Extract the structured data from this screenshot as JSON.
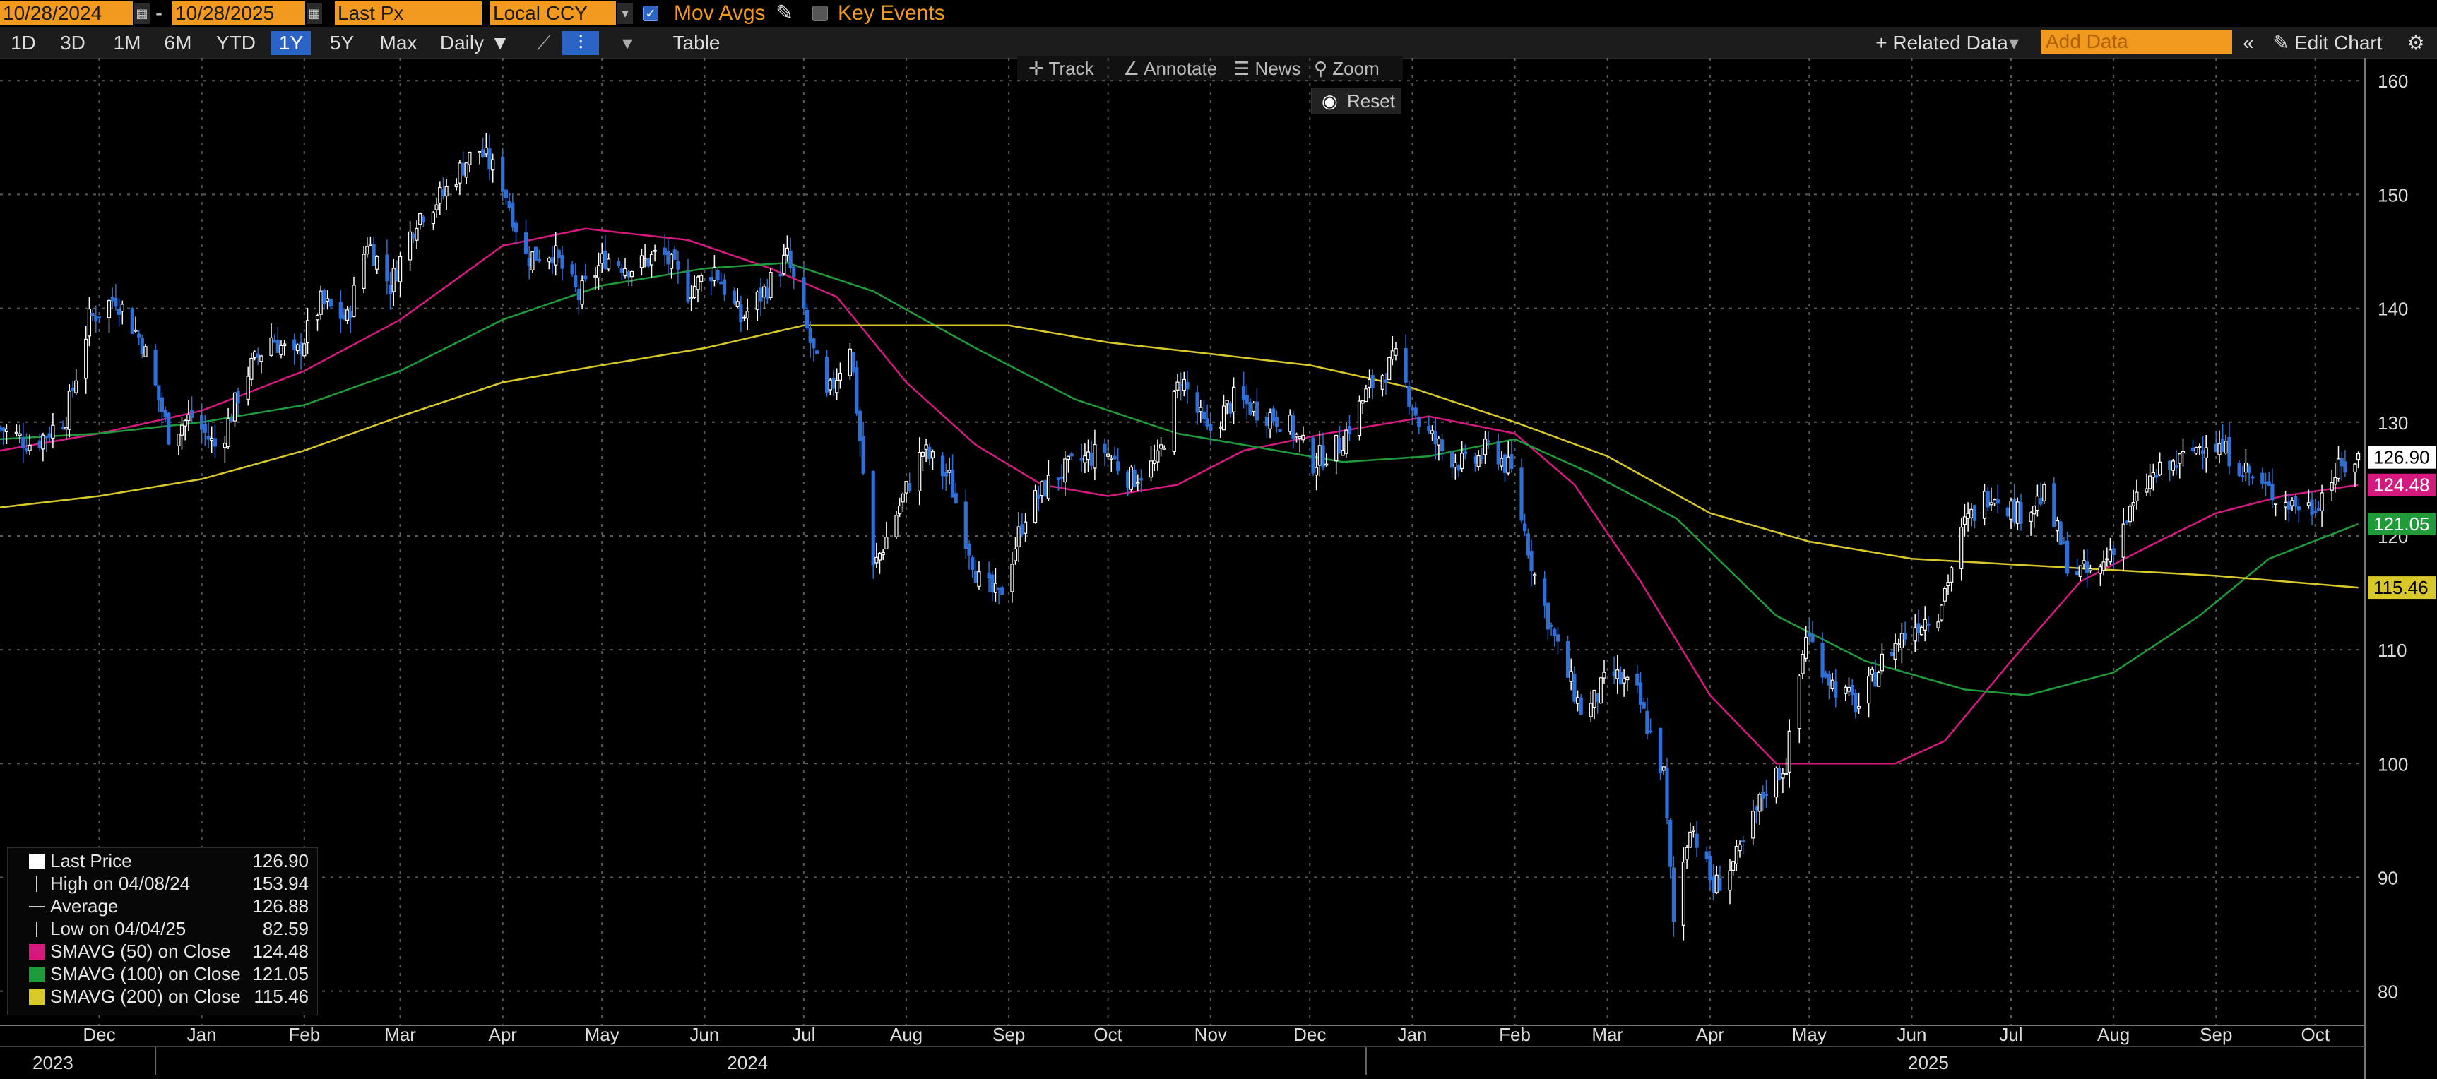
{
  "toolbar": {
    "start_date": "10/28/2024",
    "date_sep": "-",
    "end_date": "10/28/2025",
    "field": "Last Px",
    "currency": "Local CCY",
    "mov_avgs_label": "Mov Avgs",
    "mov_avgs_checked": true,
    "key_events_label": "Key Events",
    "key_events_checked": false,
    "ranges": [
      "1D",
      "3D",
      "1M",
      "6M",
      "YTD",
      "1Y",
      "5Y",
      "Max"
    ],
    "active_range": "1Y",
    "frequency": "Daily",
    "table_label": "Table",
    "related_data_label": "+ Related Data",
    "add_data_placeholder": "Add Data",
    "edit_chart_label": "Edit Chart"
  },
  "chart_menu": {
    "track": "Track",
    "annotate": "Annotate",
    "news": "News",
    "zoom": "Zoom",
    "reset": "Reset"
  },
  "legend": {
    "last_price_label": "Last Price",
    "last_price_value": "126.90",
    "high_label": "High on 04/08/24",
    "high_value": "153.94",
    "average_label": "Average",
    "average_value": "126.88",
    "low_label": "Low on 04/04/25",
    "low_value": "82.59",
    "sma50_label": "SMAVG (50)  on Close",
    "sma50_value": "124.48",
    "sma100_label": "SMAVG (100)  on Close",
    "sma100_value": "121.05",
    "sma200_label": "SMAVG (200)  on Close",
    "sma200_value": "115.46"
  },
  "colors": {
    "price": "#ffffff",
    "down": "#2f6fd6",
    "sma50": "#d6197f",
    "sma100": "#1f9b3a",
    "sma200": "#d8c82a",
    "grid": "#5a5a5a"
  },
  "chart_data": {
    "type": "line",
    "style": "candlestick",
    "x_axis": "date",
    "ylim": [
      77,
      162
    ],
    "y_ticks": [
      80,
      90,
      100,
      110,
      120,
      130,
      140,
      150,
      160
    ],
    "x_start": "2023-11-15",
    "x_end": "2025-10-30",
    "x_months": [
      {
        "label": "Dec",
        "date": "2023-12-15"
      },
      {
        "label": "Jan",
        "date": "2024-01-15"
      },
      {
        "label": "Feb",
        "date": "2024-02-15"
      },
      {
        "label": "Mar",
        "date": "2024-03-15"
      },
      {
        "label": "Apr",
        "date": "2024-04-15"
      },
      {
        "label": "May",
        "date": "2024-05-15"
      },
      {
        "label": "Jun",
        "date": "2024-06-15"
      },
      {
        "label": "Jul",
        "date": "2024-07-15"
      },
      {
        "label": "Aug",
        "date": "2024-08-15"
      },
      {
        "label": "Sep",
        "date": "2024-09-15"
      },
      {
        "label": "Oct",
        "date": "2024-10-15"
      },
      {
        "label": "Nov",
        "date": "2024-11-15"
      },
      {
        "label": "Dec",
        "date": "2024-12-15"
      },
      {
        "label": "Jan",
        "date": "2025-01-15"
      },
      {
        "label": "Feb",
        "date": "2025-02-15"
      },
      {
        "label": "Mar",
        "date": "2025-03-15"
      },
      {
        "label": "Apr",
        "date": "2025-04-15"
      },
      {
        "label": "May",
        "date": "2025-05-15"
      },
      {
        "label": "Jun",
        "date": "2025-06-15"
      },
      {
        "label": "Jul",
        "date": "2025-07-15"
      },
      {
        "label": "Aug",
        "date": "2025-08-15"
      },
      {
        "label": "Sep",
        "date": "2025-09-15"
      },
      {
        "label": "Oct",
        "date": "2025-10-15"
      }
    ],
    "x_years": [
      {
        "label": "2023",
        "date": "2023-12-01"
      },
      {
        "label": "2024",
        "date": "2024-06-28"
      },
      {
        "label": "2025",
        "date": "2025-06-20"
      }
    ],
    "x_year_breaks": [
      "2024-01-01",
      "2025-01-01"
    ],
    "price": {
      "name": "Last Price",
      "points": [
        [
          "2023-11-15",
          129.5
        ],
        [
          "2023-11-25",
          128.0
        ],
        [
          "2023-12-05",
          130.5
        ],
        [
          "2023-12-12",
          139.0
        ],
        [
          "2023-12-20",
          141.0
        ],
        [
          "2023-12-28",
          137.0
        ],
        [
          "2024-01-05",
          129.0
        ],
        [
          "2024-01-12",
          130.5
        ],
        [
          "2024-01-20",
          127.5
        ],
        [
          "2024-01-28",
          134.0
        ],
        [
          "2024-02-05",
          137.5
        ],
        [
          "2024-02-12",
          135.5
        ],
        [
          "2024-02-20",
          140.5
        ],
        [
          "2024-02-28",
          139.0
        ],
        [
          "2024-03-05",
          146.0
        ],
        [
          "2024-03-12",
          142.0
        ],
        [
          "2024-03-20",
          148.0
        ],
        [
          "2024-03-28",
          150.0
        ],
        [
          "2024-04-04",
          153.0
        ],
        [
          "2024-04-08",
          153.9
        ],
        [
          "2024-04-15",
          151.0
        ],
        [
          "2024-04-22",
          144.5
        ],
        [
          "2024-04-30",
          145.0
        ],
        [
          "2024-05-08",
          141.0
        ],
        [
          "2024-05-16",
          144.5
        ],
        [
          "2024-05-25",
          143.5
        ],
        [
          "2024-06-02",
          145.0
        ],
        [
          "2024-06-10",
          141.5
        ],
        [
          "2024-06-18",
          143.5
        ],
        [
          "2024-06-26",
          139.0
        ],
        [
          "2024-07-03",
          141.5
        ],
        [
          "2024-07-10",
          144.5
        ],
        [
          "2024-07-16",
          138.0
        ],
        [
          "2024-07-22",
          132.0
        ],
        [
          "2024-07-29",
          137.0
        ],
        [
          "2024-08-05",
          117.0
        ],
        [
          "2024-08-12",
          122.0
        ],
        [
          "2024-08-20",
          127.5
        ],
        [
          "2024-08-28",
          125.0
        ],
        [
          "2024-09-06",
          116.0
        ],
        [
          "2024-09-12",
          114.5
        ],
        [
          "2024-09-20",
          122.0
        ],
        [
          "2024-09-28",
          125.0
        ],
        [
          "2024-10-06",
          126.5
        ],
        [
          "2024-10-14",
          127.5
        ],
        [
          "2024-10-22",
          125.0
        ],
        [
          "2024-10-30",
          126.5
        ],
        [
          "2024-11-06",
          134.0
        ],
        [
          "2024-11-14",
          129.0
        ],
        [
          "2024-11-22",
          132.0
        ],
        [
          "2024-11-30",
          131.0
        ],
        [
          "2024-12-08",
          130.0
        ],
        [
          "2024-12-16",
          126.5
        ],
        [
          "2024-12-24",
          128.0
        ],
        [
          "2025-01-02",
          133.0
        ],
        [
          "2025-01-10",
          135.5
        ],
        [
          "2025-01-17",
          130.0
        ],
        [
          "2025-01-24",
          127.5
        ],
        [
          "2025-02-01",
          126.0
        ],
        [
          "2025-02-08",
          128.0
        ],
        [
          "2025-02-14",
          125.5
        ],
        [
          "2025-02-21",
          116.5
        ],
        [
          "2025-02-28",
          110.0
        ],
        [
          "2025-03-08",
          104.0
        ],
        [
          "2025-03-16",
          108.0
        ],
        [
          "2025-03-24",
          106.0
        ],
        [
          "2025-04-01",
          99.0
        ],
        [
          "2025-04-04",
          86.0
        ],
        [
          "2025-04-09",
          95.0
        ],
        [
          "2025-04-16",
          89.0
        ],
        [
          "2025-04-24",
          92.0
        ],
        [
          "2025-05-02",
          98.0
        ],
        [
          "2025-05-08",
          100.0
        ],
        [
          "2025-05-14",
          111.5
        ],
        [
          "2025-05-22",
          107.0
        ],
        [
          "2025-05-30",
          105.0
        ],
        [
          "2025-06-07",
          109.5
        ],
        [
          "2025-06-15",
          112.0
        ],
        [
          "2025-06-23",
          113.5
        ],
        [
          "2025-07-01",
          121.0
        ],
        [
          "2025-07-09",
          124.0
        ],
        [
          "2025-07-17",
          122.0
        ],
        [
          "2025-07-25",
          123.5
        ],
        [
          "2025-08-02",
          117.0
        ],
        [
          "2025-08-10",
          116.5
        ],
        [
          "2025-08-18",
          121.0
        ],
        [
          "2025-08-26",
          125.0
        ],
        [
          "2025-09-04",
          126.5
        ],
        [
          "2025-09-12",
          128.5
        ],
        [
          "2025-09-20",
          127.0
        ],
        [
          "2025-09-28",
          124.5
        ],
        [
          "2025-10-06",
          123.0
        ],
        [
          "2025-10-14",
          122.5
        ],
        [
          "2025-10-21",
          125.5
        ],
        [
          "2025-10-28",
          126.9
        ]
      ]
    },
    "series": [
      {
        "name": "SMAVG (50)  on Close",
        "color": "#d6197f",
        "points": [
          [
            "2023-11-15",
            127.5
          ],
          [
            "2023-12-15",
            129.0
          ],
          [
            "2024-01-15",
            131.0
          ],
          [
            "2024-02-15",
            134.5
          ],
          [
            "2024-03-15",
            139.0
          ],
          [
            "2024-04-15",
            145.5
          ],
          [
            "2024-05-10",
            147.0
          ],
          [
            "2024-06-10",
            146.0
          ],
          [
            "2024-07-05",
            143.5
          ],
          [
            "2024-07-25",
            141.0
          ],
          [
            "2024-08-15",
            133.5
          ],
          [
            "2024-09-05",
            128.0
          ],
          [
            "2024-09-25",
            124.5
          ],
          [
            "2024-10-15",
            123.5
          ],
          [
            "2024-11-05",
            124.5
          ],
          [
            "2024-11-25",
            127.5
          ],
          [
            "2024-12-20",
            129.0
          ],
          [
            "2025-01-20",
            130.5
          ],
          [
            "2025-02-15",
            129.0
          ],
          [
            "2025-03-05",
            124.5
          ],
          [
            "2025-03-25",
            116.0
          ],
          [
            "2025-04-15",
            106.0
          ],
          [
            "2025-05-05",
            100.0
          ],
          [
            "2025-05-25",
            100.0
          ],
          [
            "2025-06-10",
            100.0
          ],
          [
            "2025-06-25",
            102.0
          ],
          [
            "2025-07-15",
            109.0
          ],
          [
            "2025-08-05",
            116.0
          ],
          [
            "2025-08-25",
            119.0
          ],
          [
            "2025-09-15",
            122.0
          ],
          [
            "2025-10-05",
            123.5
          ],
          [
            "2025-10-28",
            124.48
          ]
        ]
      },
      {
        "name": "SMAVG (100)  on Close",
        "color": "#1f9b3a",
        "points": [
          [
            "2023-11-15",
            128.5
          ],
          [
            "2023-12-15",
            129.0
          ],
          [
            "2024-01-15",
            130.0
          ],
          [
            "2024-02-15",
            131.5
          ],
          [
            "2024-03-15",
            134.5
          ],
          [
            "2024-04-15",
            139.0
          ],
          [
            "2024-05-15",
            142.0
          ],
          [
            "2024-06-15",
            143.5
          ],
          [
            "2024-07-10",
            144.0
          ],
          [
            "2024-08-05",
            141.5
          ],
          [
            "2024-09-05",
            136.5
          ],
          [
            "2024-10-05",
            132.0
          ],
          [
            "2024-11-05",
            129.0
          ],
          [
            "2024-12-05",
            127.5
          ],
          [
            "2024-12-25",
            126.5
          ],
          [
            "2025-01-20",
            127.0
          ],
          [
            "2025-02-15",
            128.5
          ],
          [
            "2025-03-10",
            125.5
          ],
          [
            "2025-04-05",
            121.5
          ],
          [
            "2025-05-05",
            113.0
          ],
          [
            "2025-06-01",
            109.0
          ],
          [
            "2025-07-01",
            106.5
          ],
          [
            "2025-07-20",
            106.0
          ],
          [
            "2025-08-15",
            108.0
          ],
          [
            "2025-09-10",
            113.0
          ],
          [
            "2025-10-01",
            118.0
          ],
          [
            "2025-10-28",
            121.05
          ]
        ]
      },
      {
        "name": "SMAVG (200)  on Close",
        "color": "#d8c82a",
        "points": [
          [
            "2023-11-15",
            122.5
          ],
          [
            "2023-12-15",
            123.5
          ],
          [
            "2024-01-15",
            125.0
          ],
          [
            "2024-02-15",
            127.5
          ],
          [
            "2024-03-15",
            130.5
          ],
          [
            "2024-04-15",
            133.5
          ],
          [
            "2024-05-15",
            135.0
          ],
          [
            "2024-06-15",
            136.5
          ],
          [
            "2024-07-15",
            138.5
          ],
          [
            "2024-08-15",
            138.5
          ],
          [
            "2024-09-15",
            138.5
          ],
          [
            "2024-10-15",
            137.0
          ],
          [
            "2024-11-15",
            136.0
          ],
          [
            "2024-12-15",
            135.0
          ],
          [
            "2025-01-15",
            133.0
          ],
          [
            "2025-02-15",
            130.0
          ],
          [
            "2025-03-15",
            127.0
          ],
          [
            "2025-04-15",
            122.0
          ],
          [
            "2025-05-15",
            119.5
          ],
          [
            "2025-06-15",
            118.0
          ],
          [
            "2025-07-15",
            117.5
          ],
          [
            "2025-08-15",
            117.0
          ],
          [
            "2025-09-15",
            116.5
          ],
          [
            "2025-10-28",
            115.46
          ]
        ]
      }
    ],
    "value_labels": [
      {
        "text": "126.90",
        "value": 126.9,
        "bg": "#ffffff",
        "fg": "#000000"
      },
      {
        "text": "124.48",
        "value": 124.48,
        "bg": "#d6197f",
        "fg": "#ffffff"
      },
      {
        "text": "121.05",
        "value": 121.05,
        "bg": "#1f9b3a",
        "fg": "#ffffff"
      },
      {
        "text": "115.46",
        "value": 115.46,
        "bg": "#d8c82a",
        "fg": "#000000"
      }
    ]
  }
}
